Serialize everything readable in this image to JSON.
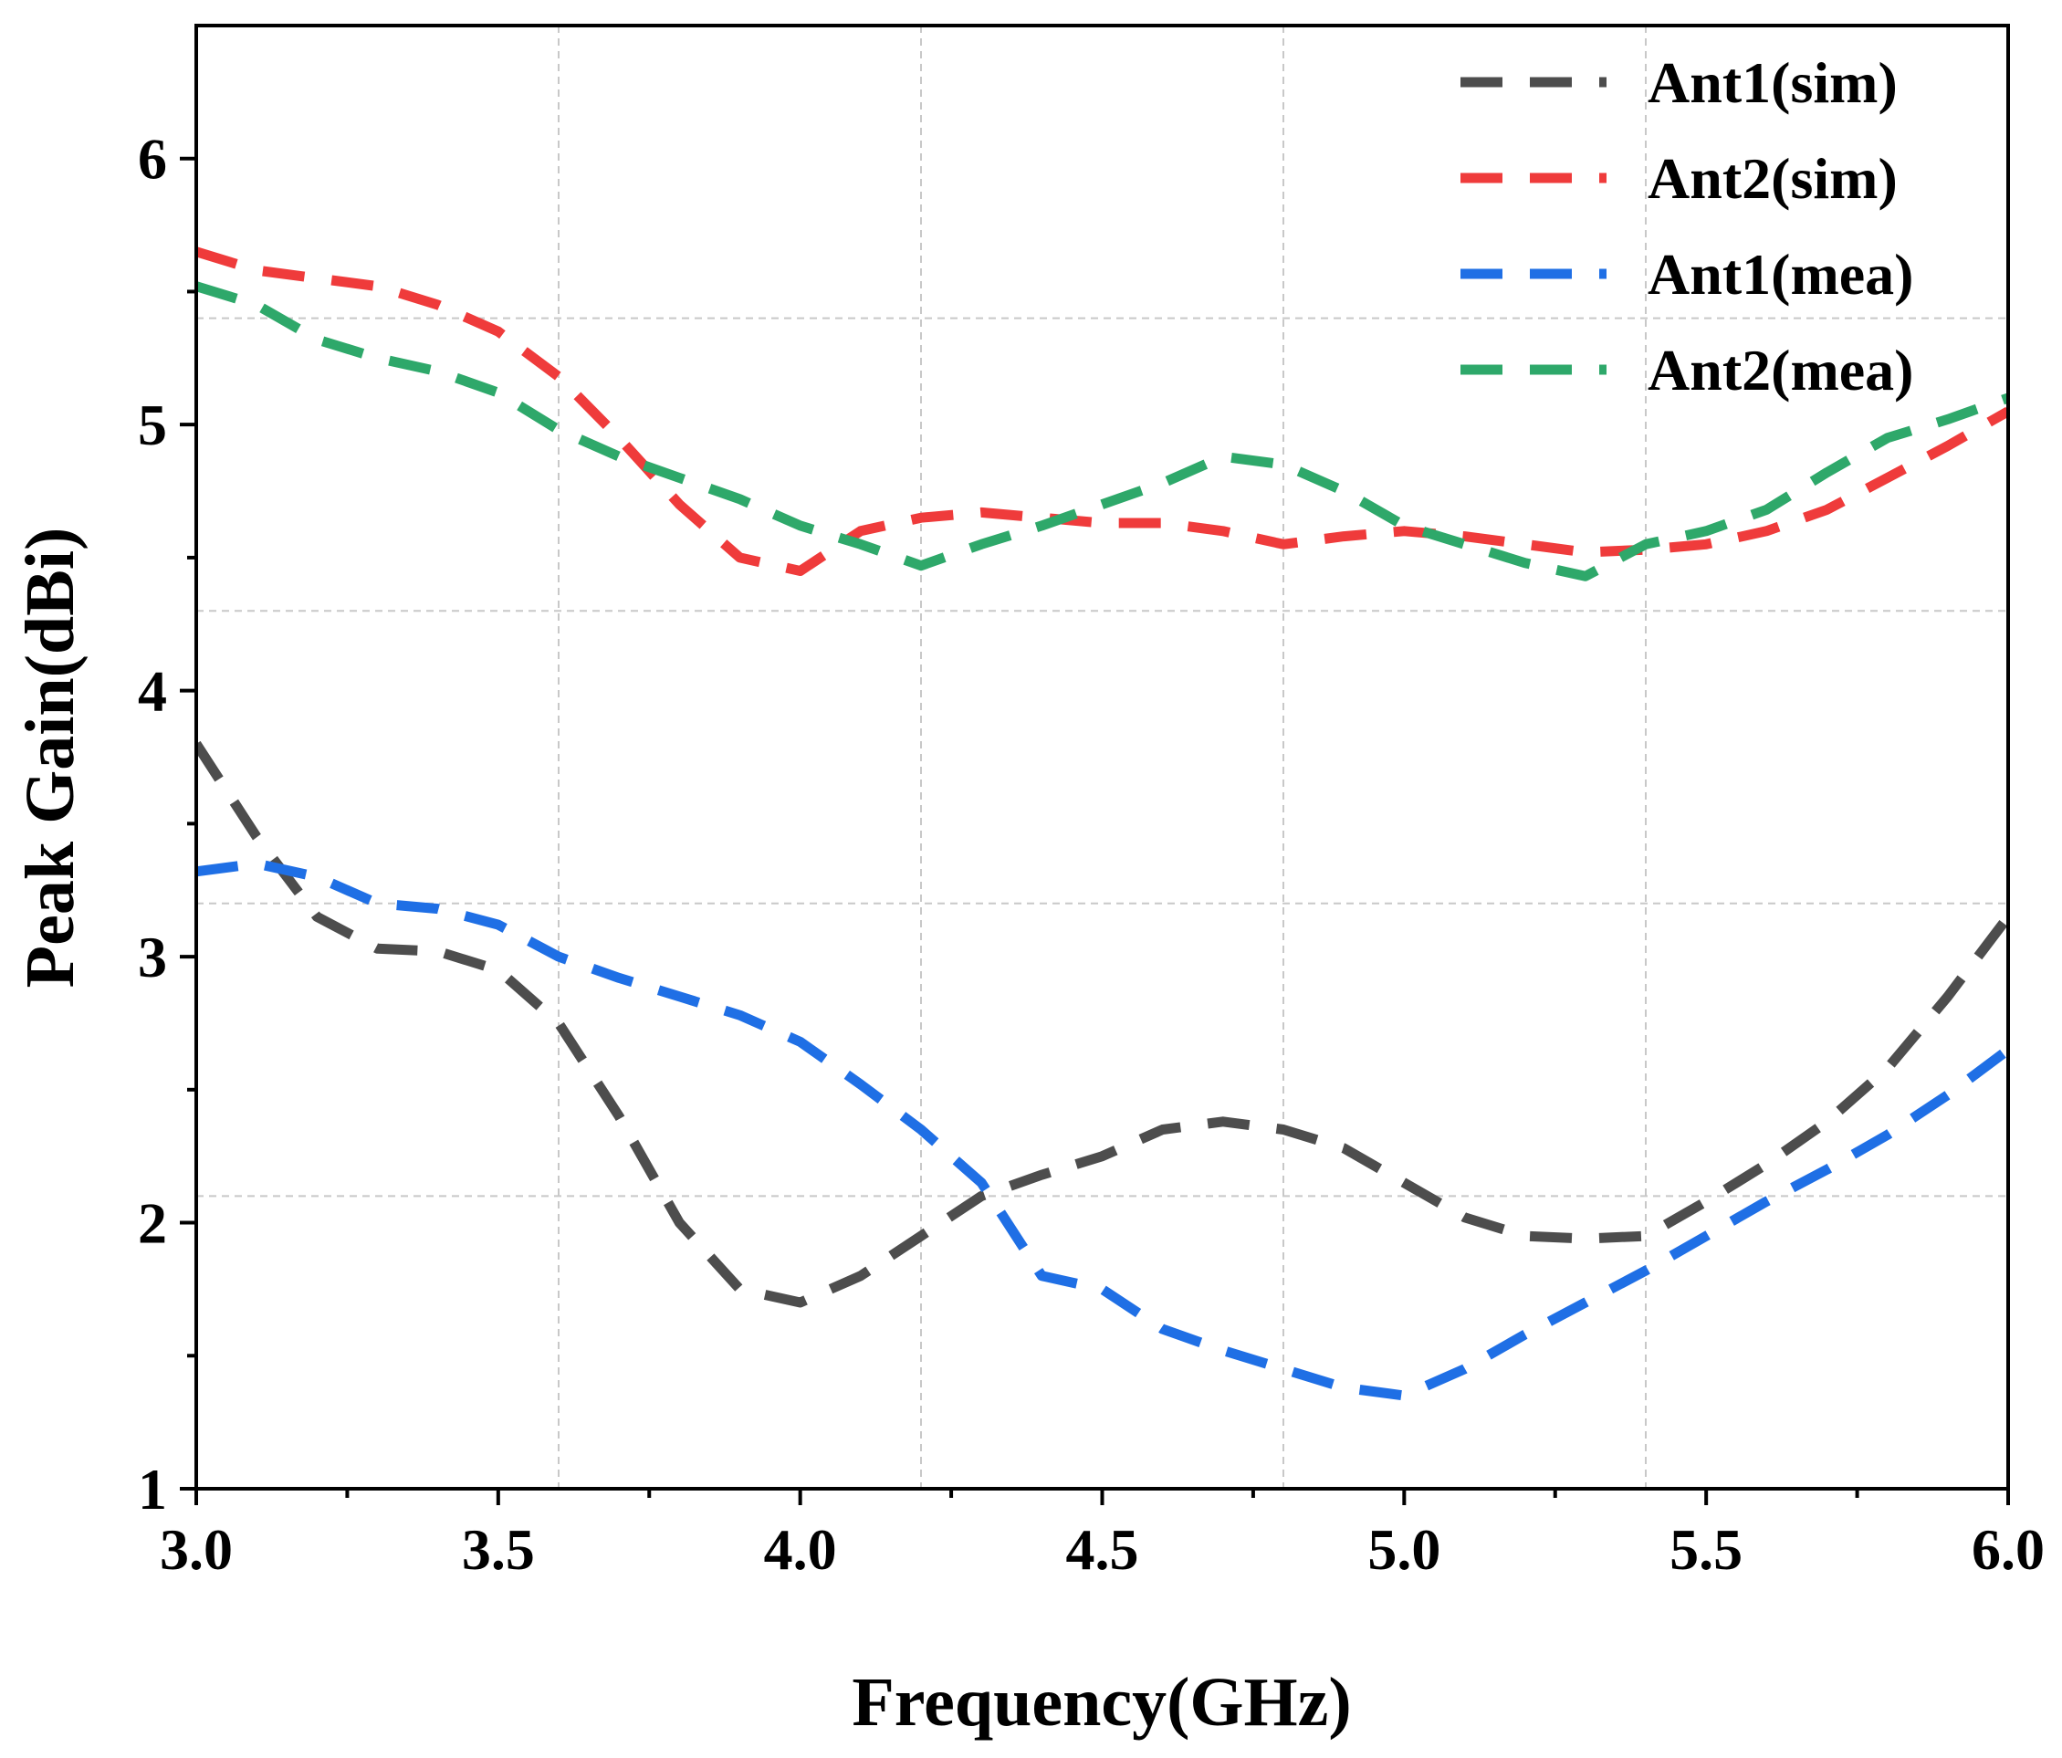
{
  "chart_data": {
    "type": "line",
    "title": "",
    "xlabel": "Frequency(GHz)",
    "ylabel": "Peak Gain(dBi)",
    "xlim": [
      3.0,
      6.0
    ],
    "ylim": [
      1,
      6.5
    ],
    "xticks": [
      "3.0",
      "3.5",
      "4.0",
      "4.5",
      "5.0",
      "5.5",
      "6.0"
    ],
    "yticks": [
      "1",
      "2",
      "3",
      "4",
      "5",
      "6"
    ],
    "legend_position": "top-right",
    "grid": "dashed",
    "series": [
      {
        "name": "Ant1(sim)",
        "color": "#4d4d4d",
        "x": [
          3.0,
          3.1,
          3.2,
          3.3,
          3.4,
          3.5,
          3.6,
          3.7,
          3.8,
          3.9,
          4.0,
          4.1,
          4.2,
          4.3,
          4.4,
          4.5,
          4.6,
          4.7,
          4.8,
          4.9,
          5.0,
          5.1,
          5.2,
          5.3,
          5.4,
          5.5,
          5.6,
          5.7,
          5.8,
          5.9,
          6.0
        ],
        "values": [
          3.8,
          3.45,
          3.15,
          3.03,
          3.02,
          2.95,
          2.75,
          2.4,
          2.0,
          1.75,
          1.7,
          1.8,
          1.95,
          2.1,
          2.18,
          2.25,
          2.35,
          2.38,
          2.35,
          2.28,
          2.15,
          2.02,
          1.95,
          1.94,
          1.95,
          2.08,
          2.22,
          2.38,
          2.58,
          2.85,
          3.15
        ]
      },
      {
        "name": "Ant2(sim)",
        "color": "#ef3b3b",
        "x": [
          3.0,
          3.1,
          3.2,
          3.3,
          3.4,
          3.5,
          3.6,
          3.7,
          3.8,
          3.9,
          4.0,
          4.1,
          4.2,
          4.3,
          4.4,
          4.5,
          4.6,
          4.7,
          4.8,
          4.9,
          5.0,
          5.1,
          5.2,
          5.3,
          5.4,
          5.5,
          5.6,
          5.7,
          5.8,
          5.9,
          6.0
        ],
        "values": [
          5.65,
          5.58,
          5.55,
          5.52,
          5.45,
          5.35,
          5.18,
          4.95,
          4.7,
          4.5,
          4.45,
          4.6,
          4.65,
          4.67,
          4.65,
          4.63,
          4.63,
          4.6,
          4.55,
          4.58,
          4.6,
          4.58,
          4.55,
          4.52,
          4.53,
          4.55,
          4.6,
          4.68,
          4.8,
          4.92,
          5.05
        ]
      },
      {
        "name": "Ant1(mea)",
        "color": "#1f6fe5",
        "x": [
          3.0,
          3.1,
          3.2,
          3.3,
          3.4,
          3.5,
          3.6,
          3.7,
          3.8,
          3.9,
          4.0,
          4.1,
          4.2,
          4.3,
          4.4,
          4.5,
          4.6,
          4.7,
          4.8,
          4.9,
          5.0,
          5.1,
          5.2,
          5.3,
          5.4,
          5.5,
          5.6,
          5.7,
          5.8,
          5.9,
          6.0
        ],
        "values": [
          3.32,
          3.35,
          3.3,
          3.2,
          3.18,
          3.12,
          3.0,
          2.92,
          2.85,
          2.78,
          2.68,
          2.52,
          2.35,
          2.15,
          1.8,
          1.75,
          1.6,
          1.52,
          1.45,
          1.38,
          1.35,
          1.45,
          1.58,
          1.7,
          1.82,
          1.95,
          2.08,
          2.2,
          2.33,
          2.48,
          2.65
        ]
      },
      {
        "name": "Ant2(mea)",
        "color": "#2ea86a",
        "x": [
          3.0,
          3.1,
          3.2,
          3.3,
          3.4,
          3.5,
          3.6,
          3.7,
          3.8,
          3.9,
          4.0,
          4.1,
          4.2,
          4.3,
          4.4,
          4.5,
          4.6,
          4.7,
          4.8,
          4.9,
          5.0,
          5.1,
          5.2,
          5.3,
          5.4,
          5.5,
          5.6,
          5.7,
          5.8,
          5.9,
          6.0
        ],
        "values": [
          5.52,
          5.45,
          5.32,
          5.25,
          5.2,
          5.12,
          4.98,
          4.88,
          4.8,
          4.72,
          4.62,
          4.55,
          4.47,
          4.55,
          4.62,
          4.7,
          4.78,
          4.88,
          4.85,
          4.75,
          4.62,
          4.55,
          4.48,
          4.43,
          4.55,
          4.6,
          4.68,
          4.82,
          4.95,
          5.02,
          5.1
        ]
      }
    ]
  }
}
